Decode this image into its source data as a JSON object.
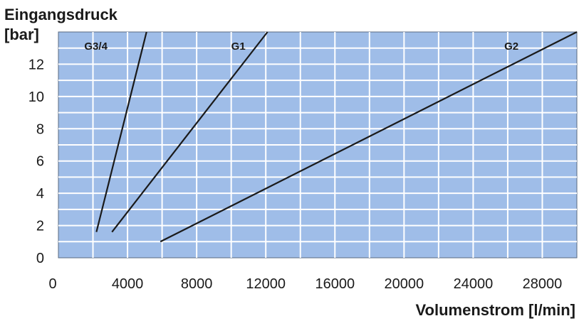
{
  "chart_data": {
    "type": "line",
    "title": "",
    "ylabel_line1": "Eingangsdruck",
    "ylabel_line2": "[bar]",
    "xlabel": "Volumenstrom [l/min]",
    "xlim": [
      0,
      30000
    ],
    "ylim": [
      0,
      14
    ],
    "xticks": [
      0,
      4000,
      8000,
      12000,
      16000,
      20000,
      24000,
      28000
    ],
    "yticks": [
      0,
      2,
      4,
      6,
      8,
      10,
      12
    ],
    "grid": true,
    "plot_background": "#9fbde8",
    "grid_color": "#ffffff",
    "line_color": "#1a1a1a",
    "series": [
      {
        "name": "G3/4",
        "x": [
          2200,
          5100
        ],
        "y": [
          1.6,
          14
        ]
      },
      {
        "name": "G1",
        "x": [
          3100,
          12100
        ],
        "y": [
          1.6,
          14
        ]
      },
      {
        "name": "G2",
        "x": [
          5900,
          30000
        ],
        "y": [
          1.0,
          14
        ]
      }
    ]
  }
}
